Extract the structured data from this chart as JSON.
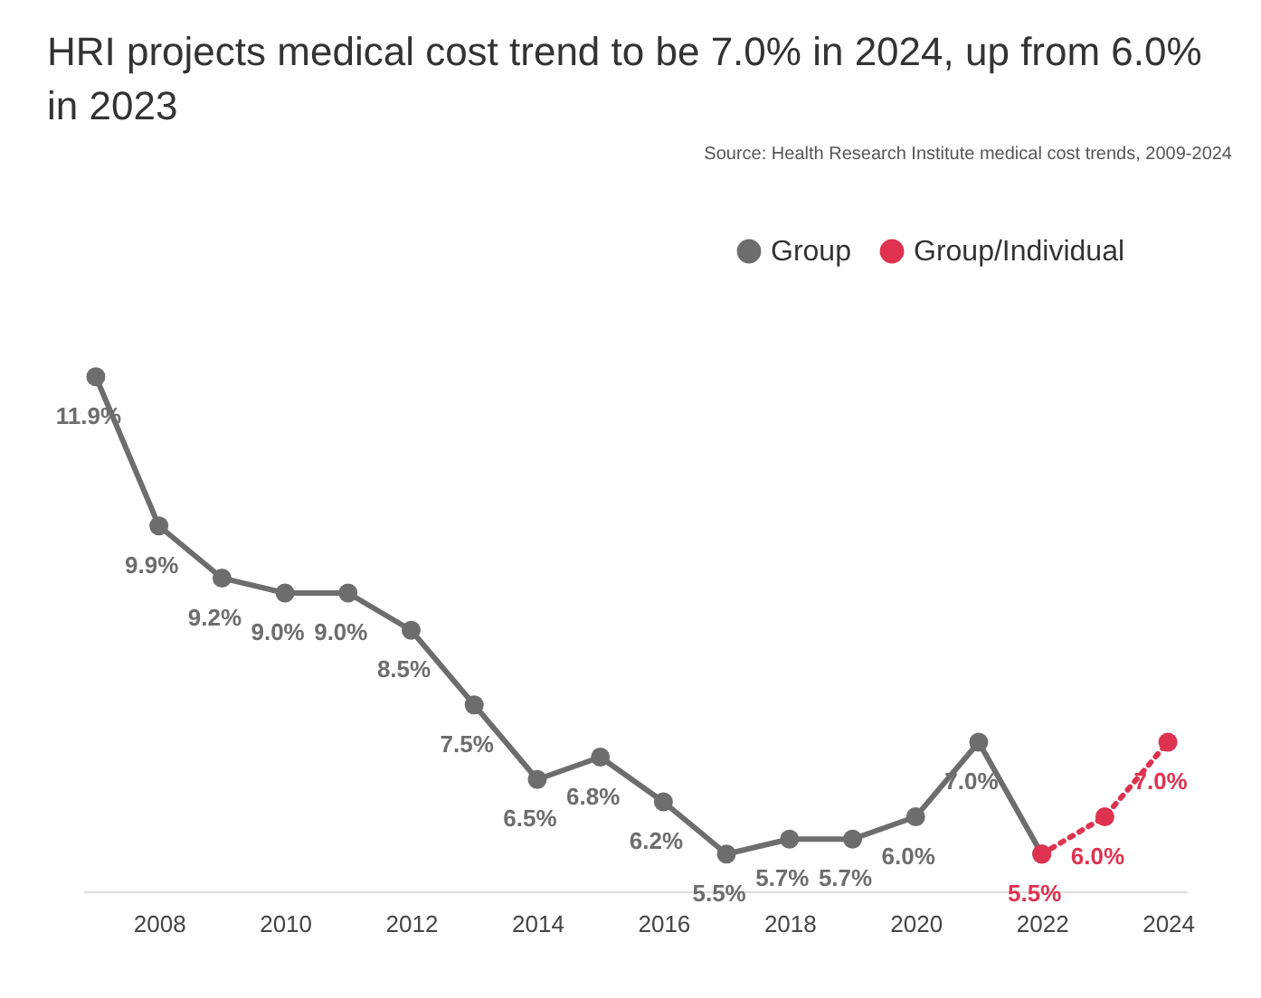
{
  "chart_data": {
    "type": "line",
    "title": "HRI projects medical cost trend to be 7.0% in 2024, up from 6.0% in 2023",
    "annotations": [
      "Source: Health Research Institute medical cost trends, 2009-2024"
    ],
    "xlim": [
      2006.8,
      2024.3
    ],
    "xticks": [
      2008,
      2010,
      2012,
      2014,
      2016,
      2018,
      2020,
      2022,
      2024
    ],
    "legend": "top right",
    "marker": "circle",
    "grid": false,
    "series": [
      {
        "name": "Group",
        "color": "#6d6d6d",
        "line_style": "solid",
        "x": [
          2007,
          2008,
          2009,
          2010,
          2011,
          2012,
          2013,
          2014,
          2015,
          2016,
          2017,
          2018,
          2019,
          2020,
          2021,
          2022
        ],
        "values": [
          11.9,
          9.9,
          9.2,
          9.0,
          9.0,
          8.5,
          7.5,
          6.5,
          6.8,
          6.2,
          5.5,
          5.7,
          5.7,
          6.0,
          7.0,
          5.5
        ],
        "value_labels": [
          "11.9%",
          "9.9%",
          "9.2%",
          "9.0%",
          "9.0%",
          "8.5%",
          "7.5%",
          "6.5%",
          "6.8%",
          "6.2%",
          "5.5%",
          "5.7%",
          "5.7%",
          "6.0%",
          "7.0%",
          null
        ]
      },
      {
        "name": "Group/Individual",
        "color": "#de3250",
        "line_style": "dotted",
        "x": [
          2022,
          2023,
          2024
        ],
        "values": [
          5.5,
          6.0,
          7.0
        ],
        "value_labels": [
          "5.5%",
          "6.0%",
          "7.0%"
        ]
      }
    ]
  }
}
